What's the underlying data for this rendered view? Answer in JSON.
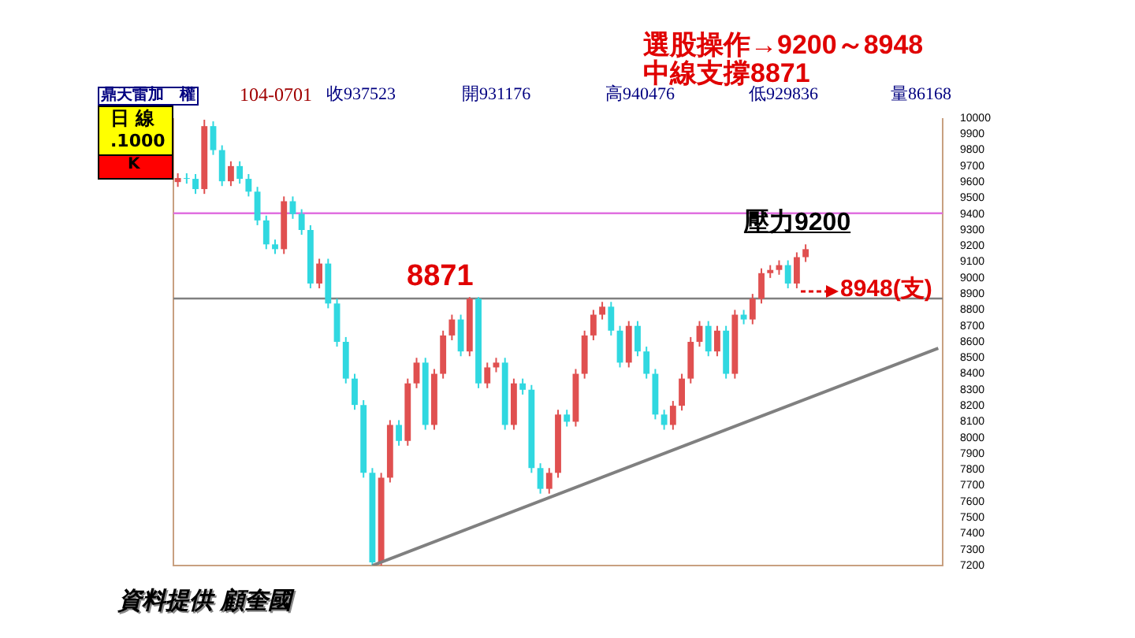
{
  "chart_data": {
    "type": "candlestick",
    "title": "選股操作→9200～8948",
    "subtitle": "中線支撐8871",
    "categories": [
      null,
      null,
      null,
      null,
      null,
      null,
      null,
      null,
      null,
      null,
      null,
      null,
      null,
      null,
      null,
      null,
      null,
      null,
      null,
      null,
      null,
      null,
      null,
      null,
      null,
      null,
      null,
      null,
      null,
      null,
      null,
      null,
      null,
      null,
      null,
      null,
      null,
      null,
      null,
      null,
      null,
      null,
      null,
      null,
      null,
      null,
      null,
      null,
      null,
      null,
      null,
      null,
      null,
      null,
      null,
      null,
      null,
      null,
      null,
      null,
      null,
      null,
      null,
      null,
      null,
      null,
      null,
      null,
      null,
      null,
      null,
      null,
      null,
      null,
      null,
      null,
      null,
      null,
      null,
      null,
      null,
      null,
      null,
      null,
      null,
      null,
      null
    ],
    "ohlc": [
      [
        9600,
        9655,
        9570,
        9625
      ],
      [
        9625,
        9655,
        9590,
        9620
      ],
      [
        9620,
        9650,
        9526,
        9556
      ],
      [
        9556,
        9990,
        9526,
        9950
      ],
      [
        9950,
        9980,
        9770,
        9800
      ],
      [
        9800,
        9830,
        9575,
        9605
      ],
      [
        9605,
        9730,
        9575,
        9700
      ],
      [
        9700,
        9730,
        9590,
        9620
      ],
      [
        9620,
        9650,
        9510,
        9540
      ],
      [
        9540,
        9570,
        9330,
        9360
      ],
      [
        9360,
        9390,
        9180,
        9210
      ],
      [
        9210,
        9240,
        9150,
        9180
      ],
      [
        9180,
        9510,
        9150,
        9480
      ],
      [
        9480,
        9510,
        9370,
        9400
      ],
      [
        9400,
        9430,
        9270,
        9300
      ],
      [
        9300,
        9330,
        8935,
        8965
      ],
      [
        8965,
        9120,
        8935,
        9090
      ],
      [
        9090,
        9120,
        8810,
        8840
      ],
      [
        8840,
        8870,
        8570,
        8600
      ],
      [
        8600,
        8630,
        8340,
        8370
      ],
      [
        8370,
        8400,
        8175,
        8205
      ],
      [
        8205,
        8235,
        7750,
        7780
      ],
      [
        7780,
        7810,
        7200,
        7220
      ],
      [
        7220,
        7780,
        7200,
        7750
      ],
      [
        7750,
        8110,
        7720,
        8080
      ],
      [
        8080,
        8110,
        7950,
        7980
      ],
      [
        7980,
        8370,
        7950,
        8340
      ],
      [
        8340,
        8500,
        8310,
        8470
      ],
      [
        8470,
        8500,
        8050,
        8080
      ],
      [
        8080,
        8430,
        8050,
        8400
      ],
      [
        8400,
        8670,
        8370,
        8640
      ],
      [
        8640,
        8770,
        8610,
        8740
      ],
      [
        8740,
        8770,
        8510,
        8540
      ],
      [
        8540,
        8880,
        8510,
        8870
      ],
      [
        8870,
        8880,
        8310,
        8340
      ],
      [
        8340,
        8470,
        8310,
        8440
      ],
      [
        8440,
        8500,
        8410,
        8470
      ],
      [
        8470,
        8500,
        8050,
        8080
      ],
      [
        8080,
        8370,
        8050,
        8340
      ],
      [
        8340,
        8370,
        8270,
        8300
      ],
      [
        8300,
        8330,
        7780,
        7810
      ],
      [
        7810,
        7840,
        7650,
        7680
      ],
      [
        7680,
        7810,
        7650,
        7780
      ],
      [
        7780,
        8175,
        7750,
        8145
      ],
      [
        8145,
        8175,
        8070,
        8100
      ],
      [
        8100,
        8430,
        8070,
        8400
      ],
      [
        8400,
        8670,
        8370,
        8640
      ],
      [
        8640,
        8800,
        8610,
        8770
      ],
      [
        8770,
        8850,
        8740,
        8820
      ],
      [
        8820,
        8850,
        8640,
        8670
      ],
      [
        8670,
        8700,
        8440,
        8470
      ],
      [
        8470,
        8730,
        8440,
        8700
      ],
      [
        8700,
        8730,
        8510,
        8540
      ],
      [
        8540,
        8570,
        8370,
        8400
      ],
      [
        8400,
        8430,
        8115,
        8145
      ],
      [
        8145,
        8175,
        8050,
        8080
      ],
      [
        8080,
        8230,
        8050,
        8200
      ],
      [
        8200,
        8400,
        8170,
        8370
      ],
      [
        8370,
        8630,
        8340,
        8600
      ],
      [
        8600,
        8730,
        8570,
        8700
      ],
      [
        8700,
        8730,
        8510,
        8540
      ],
      [
        8540,
        8700,
        8510,
        8670
      ],
      [
        8670,
        8700,
        8370,
        8400
      ],
      [
        8400,
        8800,
        8370,
        8770
      ],
      [
        8770,
        8800,
        8710,
        8740
      ],
      [
        8740,
        8900,
        8710,
        8870
      ],
      [
        8870,
        9060,
        8840,
        9030
      ],
      [
        9030,
        9080,
        9000,
        9050
      ],
      [
        9050,
        9110,
        9020,
        9080
      ],
      [
        9080,
        9110,
        8935,
        8965
      ],
      [
        8965,
        9160,
        8935,
        9130
      ],
      [
        9130,
        9210,
        9100,
        9180
      ],
      null,
      null,
      null,
      null,
      null,
      null,
      null,
      null,
      null,
      null,
      null,
      null,
      null,
      null,
      null
    ],
    "series": [
      {
        "type": "line",
        "color": "#808080",
        "values": [
          null,
          null,
          null,
          null,
          null,
          null,
          null,
          null,
          null,
          null,
          null,
          null,
          null,
          null,
          null,
          null,
          null,
          null,
          null,
          null,
          null,
          null,
          7200,
          null,
          null,
          null,
          null,
          null,
          null,
          null,
          null,
          null,
          null,
          null,
          null,
          null,
          null,
          null,
          null,
          null,
          null,
          null,
          null,
          null,
          null,
          null,
          null,
          null,
          null,
          null,
          null,
          null,
          null,
          null,
          null,
          null,
          null,
          null,
          null,
          null,
          null,
          null,
          null,
          null,
          null,
          null,
          null,
          null,
          null,
          null,
          null,
          null,
          null,
          null,
          null,
          null,
          null,
          null,
          null,
          null,
          null,
          null,
          null,
          null,
          null,
          null,
          8560
        ]
      }
    ],
    "ylim": [
      7200,
      10000
    ],
    "yticks": [
      7200,
      7300,
      7400,
      7500,
      7600,
      7700,
      7800,
      7900,
      8000,
      8100,
      8200,
      8300,
      8400,
      8500,
      8600,
      8700,
      8800,
      8900,
      9000,
      9100,
      9200,
      9300,
      9400,
      9500,
      9600,
      9700,
      9800,
      9900,
      10000
    ],
    "ref_lines": [
      {
        "axis": "y",
        "value": 8871,
        "color": "#808080"
      },
      {
        "axis": "y",
        "value": 9405,
        "color": "#e070e0"
      }
    ],
    "annotations": [
      "鼎天雷加　權",
      "104-0701",
      "收937523",
      "開931176",
      "高940476",
      "低929836",
      "量86168",
      "日 線",
      ".1000",
      "K",
      {
        "text": "8871",
        "y": 8871
      },
      {
        "text": "壓力9200",
        "y": 9200
      },
      "8948(支)",
      "資料提供 顧奎國"
    ]
  }
}
